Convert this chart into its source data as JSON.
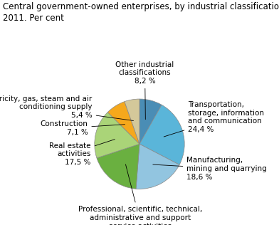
{
  "title": "Central government-owned enterprises, by industrial classification.\n2011. Per cent",
  "slices": [
    {
      "label": "Other industrial\nclassifications",
      "value": 8.2,
      "color": "#4a8db5",
      "pct_str": "8,2 %"
    },
    {
      "label": "Transportation,\nstorage, information\nand communication",
      "value": 24.4,
      "color": "#5ab5d9",
      "pct_str": "24,4 %"
    },
    {
      "label": "Manufacturing,\nmining and quarrying",
      "value": 18.6,
      "color": "#92c5e0",
      "pct_str": "18,6 %"
    },
    {
      "label": "Professional, scientific, technical,\nadministrative and support\nservice activities",
      "value": 18.7,
      "color": "#6ab040",
      "pct_str": "18,7 %"
    },
    {
      "label": "Real estate\nactivities",
      "value": 17.5,
      "color": "#aad478",
      "pct_str": "17,5 %"
    },
    {
      "label": "Construction",
      "value": 7.1,
      "color": "#f5a81c",
      "pct_str": "7,1 %"
    },
    {
      "label": "Electricity, gas, steam and air\nconditioning supply",
      "value": 5.4,
      "color": "#d4c89a",
      "pct_str": "5,4 %"
    }
  ],
  "start_angle": 90,
  "title_fontsize": 8.5,
  "label_fontsize": 7.5,
  "edge_color": "#888888",
  "edge_lw": 0.5
}
